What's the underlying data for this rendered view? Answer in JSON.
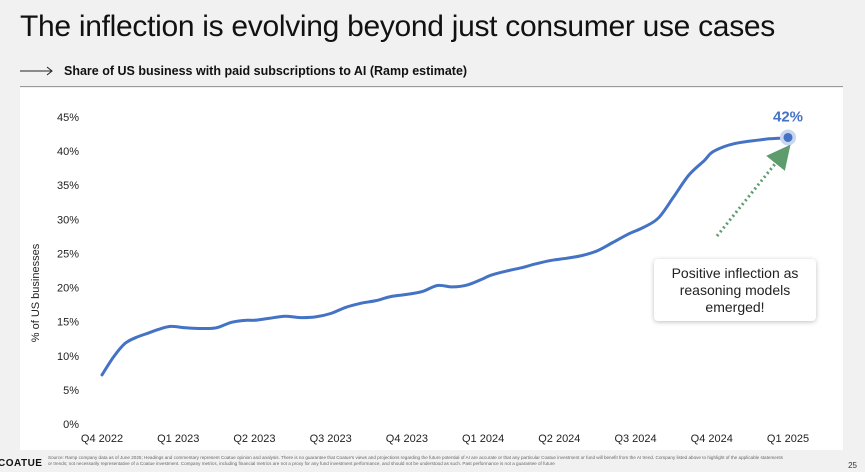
{
  "header": {
    "title": "The inflection is evolving beyond just consumer use cases",
    "subtitle": "Share of US business with paid subscriptions to AI (Ramp estimate)"
  },
  "annotation": {
    "text": "Positive inflection as reasoning models emerged!",
    "arrow_color": "#5e9c6e"
  },
  "chart_data": {
    "type": "line",
    "title": "Share of US business with paid subscriptions to AI (Ramp estimate)",
    "xlabel": "",
    "ylabel": "% of US businesses",
    "x_tick_labels": [
      "Q4 2022",
      "Q1 2023",
      "Q2 2023",
      "Q3 2023",
      "Q4 2023",
      "Q1 2024",
      "Q2 2024",
      "Q3 2024",
      "Q4 2024",
      "Q1 2025"
    ],
    "y_tick_labels": [
      "0%",
      "5%",
      "10%",
      "15%",
      "20%",
      "25%",
      "30%",
      "35%",
      "40%",
      "45%"
    ],
    "ylim": [
      0,
      45
    ],
    "grid": false,
    "series": [
      {
        "color": "#4472c4",
        "x": [
          0,
          0.15,
          0.3,
          0.45,
          0.6,
          0.75,
          0.9,
          1.1,
          1.3,
          1.5,
          1.7,
          1.9,
          2.0,
          2.2,
          2.4,
          2.6,
          2.8,
          3.0,
          3.2,
          3.4,
          3.6,
          3.8,
          4.0,
          4.2,
          4.4,
          4.6,
          4.8,
          5.0,
          5.1,
          5.3,
          5.5,
          5.7,
          5.9,
          6.1,
          6.3,
          6.5,
          6.7,
          6.9,
          7.1,
          7.3,
          7.5,
          7.7,
          7.9,
          8.0,
          8.15,
          8.3,
          8.45,
          8.6,
          8.75,
          8.9,
          9.0
        ],
        "values": [
          7.2,
          9.8,
          11.8,
          12.7,
          13.3,
          13.9,
          14.3,
          14.1,
          14.0,
          14.1,
          14.9,
          15.2,
          15.2,
          15.5,
          15.8,
          15.6,
          15.7,
          16.2,
          17.1,
          17.7,
          18.1,
          18.7,
          19.0,
          19.4,
          20.3,
          20.1,
          20.4,
          21.3,
          21.8,
          22.4,
          22.9,
          23.5,
          24.0,
          24.3,
          24.7,
          25.4,
          26.6,
          27.8,
          28.8,
          30.2,
          33.3,
          36.5,
          38.6,
          39.8,
          40.6,
          41.1,
          41.4,
          41.6,
          41.8,
          41.9,
          42.0
        ],
        "end_label": "42%"
      }
    ]
  },
  "footer": {
    "logo": "COATUE",
    "source": "Source: Ramp company data as of June 2025; Headings and commentary represent Coatue opinion and analysis. There is no guarantee that Coatue's views and projections regarding the future potential of AI are accurate or that any particular Coatue investment or fund will benefit from the AI trend. Company listed above to highlight of the applicable statements or trends; not necessarily representative of a Coatue investment. Company metrics, including financial metrics are not a proxy for any fund investment performance, and should not be understood as such. Past performance is not a guarantee of future",
    "page_number": "25"
  }
}
